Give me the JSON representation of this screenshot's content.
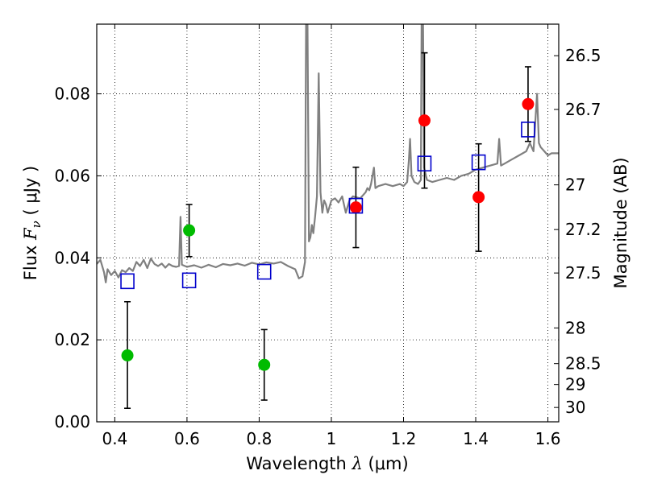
{
  "chart_data": {
    "type": "scatter",
    "xlabel": {
      "prefix": "Wavelength  ",
      "symbol": "λ",
      "suffix": " (μm)"
    },
    "ylabel": {
      "prefix": "Flux  ",
      "symbol": "F",
      "sub": "ν",
      "suffix": "  ( μJy )"
    },
    "ylabel_right": "Magnitude (AB)",
    "xlim": [
      0.35,
      1.63
    ],
    "ylim": [
      0.0,
      0.097
    ],
    "x_ticks": [
      0.4,
      0.6,
      0.8,
      1.0,
      1.2,
      1.4,
      1.6
    ],
    "x_tick_labels": [
      "0.4",
      "0.6",
      "0.8",
      "1",
      "1.2",
      "1.4",
      "1.6"
    ],
    "y_ticks": [
      0.0,
      0.02,
      0.04,
      0.06,
      0.08
    ],
    "y_tick_labels": [
      "0.00",
      "0.02",
      "0.04",
      "0.06",
      "0.08"
    ],
    "right_ticks": [
      {
        "label": "26.5",
        "flux": 0.0893
      },
      {
        "label": "26.7",
        "flux": 0.0762
      },
      {
        "label": "27",
        "flux": 0.0578
      },
      {
        "label": "27.2",
        "flux": 0.0469
      },
      {
        "label": "27.5",
        "flux": 0.0363
      },
      {
        "label": "28",
        "flux": 0.0229
      },
      {
        "label": "28.5",
        "flux": 0.0142
      },
      {
        "label": "29",
        "flux": 0.0091
      },
      {
        "label": "30",
        "flux": 0.0035
      }
    ],
    "grid": true,
    "colors": {
      "spectrum": "#808080",
      "green": "#00bb00",
      "red": "#ff0000",
      "model": "#0000cc",
      "errorbar": "#000000"
    },
    "series": [
      {
        "marker": "circle",
        "color": "green",
        "points": [
          {
            "x": 0.435,
            "y": 0.0162,
            "ylo": 0.0033,
            "yhi": 0.0293
          },
          {
            "x": 0.606,
            "y": 0.0467,
            "ylo": 0.0403,
            "yhi": 0.053
          },
          {
            "x": 0.814,
            "y": 0.0139,
            "ylo": 0.0053,
            "yhi": 0.0225
          }
        ]
      },
      {
        "marker": "circle",
        "color": "red",
        "points": [
          {
            "x": 1.068,
            "y": 0.0523,
            "ylo": 0.0425,
            "yhi": 0.0621
          },
          {
            "x": 1.258,
            "y": 0.0735,
            "ylo": 0.057,
            "yhi": 0.09
          },
          {
            "x": 1.408,
            "y": 0.0548,
            "ylo": 0.0416,
            "yhi": 0.0678
          },
          {
            "x": 1.545,
            "y": 0.0775,
            "ylo": 0.0684,
            "yhi": 0.0866
          }
        ]
      },
      {
        "marker": "open-square",
        "color": "model",
        "points": [
          {
            "x": 0.435,
            "y": 0.0343
          },
          {
            "x": 0.606,
            "y": 0.0345
          },
          {
            "x": 0.814,
            "y": 0.0366
          },
          {
            "x": 1.068,
            "y": 0.0527
          },
          {
            "x": 1.258,
            "y": 0.063
          },
          {
            "x": 1.408,
            "y": 0.0633
          },
          {
            "x": 1.545,
            "y": 0.0713
          }
        ]
      },
      {
        "marker": "line",
        "color": "spectrum",
        "points": [
          [
            0.35,
            0.0385
          ],
          [
            0.36,
            0.0395
          ],
          [
            0.37,
            0.0365
          ],
          [
            0.375,
            0.034
          ],
          [
            0.38,
            0.0372
          ],
          [
            0.39,
            0.0358
          ],
          [
            0.4,
            0.0368
          ],
          [
            0.41,
            0.0352
          ],
          [
            0.42,
            0.037
          ],
          [
            0.43,
            0.0365
          ],
          [
            0.44,
            0.0375
          ],
          [
            0.45,
            0.0368
          ],
          [
            0.46,
            0.039
          ],
          [
            0.47,
            0.038
          ],
          [
            0.48,
            0.0395
          ],
          [
            0.49,
            0.0375
          ],
          [
            0.5,
            0.0398
          ],
          [
            0.51,
            0.0385
          ],
          [
            0.52,
            0.038
          ],
          [
            0.53,
            0.0386
          ],
          [
            0.54,
            0.0376
          ],
          [
            0.55,
            0.0385
          ],
          [
            0.56,
            0.038
          ],
          [
            0.57,
            0.0378
          ],
          [
            0.578,
            0.038
          ],
          [
            0.582,
            0.05
          ],
          [
            0.586,
            0.0383
          ],
          [
            0.6,
            0.0378
          ],
          [
            0.62,
            0.0382
          ],
          [
            0.64,
            0.0376
          ],
          [
            0.66,
            0.0383
          ],
          [
            0.68,
            0.0377
          ],
          [
            0.7,
            0.0385
          ],
          [
            0.72,
            0.0382
          ],
          [
            0.74,
            0.0386
          ],
          [
            0.76,
            0.0381
          ],
          [
            0.78,
            0.0388
          ],
          [
            0.8,
            0.0384
          ],
          [
            0.82,
            0.0389
          ],
          [
            0.84,
            0.0386
          ],
          [
            0.86,
            0.039
          ],
          [
            0.88,
            0.038
          ],
          [
            0.9,
            0.0372
          ],
          [
            0.91,
            0.035
          ],
          [
            0.92,
            0.0355
          ],
          [
            0.927,
            0.039
          ],
          [
            0.93,
            0.097
          ],
          [
            0.934,
            0.097
          ],
          [
            0.938,
            0.044
          ],
          [
            0.942,
            0.045
          ],
          [
            0.946,
            0.048
          ],
          [
            0.95,
            0.046
          ],
          [
            0.955,
            0.05
          ],
          [
            0.96,
            0.055
          ],
          [
            0.965,
            0.085
          ],
          [
            0.97,
            0.056
          ],
          [
            0.975,
            0.051
          ],
          [
            0.98,
            0.054
          ],
          [
            0.985,
            0.053
          ],
          [
            0.99,
            0.051
          ],
          [
            1.0,
            0.054
          ],
          [
            1.01,
            0.0545
          ],
          [
            1.02,
            0.0535
          ],
          [
            1.03,
            0.055
          ],
          [
            1.04,
            0.051
          ],
          [
            1.05,
            0.054
          ],
          [
            1.06,
            0.055
          ],
          [
            1.08,
            0.0545
          ],
          [
            1.095,
            0.056
          ],
          [
            1.1,
            0.057
          ],
          [
            1.105,
            0.0565
          ],
          [
            1.11,
            0.058
          ],
          [
            1.118,
            0.062
          ],
          [
            1.122,
            0.057
          ],
          [
            1.13,
            0.0575
          ],
          [
            1.15,
            0.058
          ],
          [
            1.17,
            0.0575
          ],
          [
            1.19,
            0.058
          ],
          [
            1.2,
            0.0575
          ],
          [
            1.21,
            0.0585
          ],
          [
            1.215,
            0.064
          ],
          [
            1.218,
            0.069
          ],
          [
            1.222,
            0.06
          ],
          [
            1.23,
            0.0585
          ],
          [
            1.24,
            0.058
          ],
          [
            1.248,
            0.059
          ],
          [
            1.25,
            0.097
          ],
          [
            1.254,
            0.097
          ],
          [
            1.257,
            0.062
          ],
          [
            1.265,
            0.059
          ],
          [
            1.28,
            0.0585
          ],
          [
            1.3,
            0.059
          ],
          [
            1.32,
            0.0595
          ],
          [
            1.34,
            0.059
          ],
          [
            1.36,
            0.06
          ],
          [
            1.38,
            0.0605
          ],
          [
            1.4,
            0.0615
          ],
          [
            1.42,
            0.062
          ],
          [
            1.44,
            0.0625
          ],
          [
            1.46,
            0.063
          ],
          [
            1.465,
            0.069
          ],
          [
            1.47,
            0.0625
          ],
          [
            1.48,
            0.063
          ],
          [
            1.5,
            0.064
          ],
          [
            1.52,
            0.065
          ],
          [
            1.54,
            0.066
          ],
          [
            1.55,
            0.068
          ],
          [
            1.56,
            0.066
          ],
          [
            1.57,
            0.08
          ],
          [
            1.575,
            0.068
          ],
          [
            1.58,
            0.067
          ],
          [
            1.59,
            0.066
          ],
          [
            1.6,
            0.065
          ],
          [
            1.61,
            0.0655
          ],
          [
            1.63,
            0.0655
          ]
        ]
      }
    ]
  }
}
